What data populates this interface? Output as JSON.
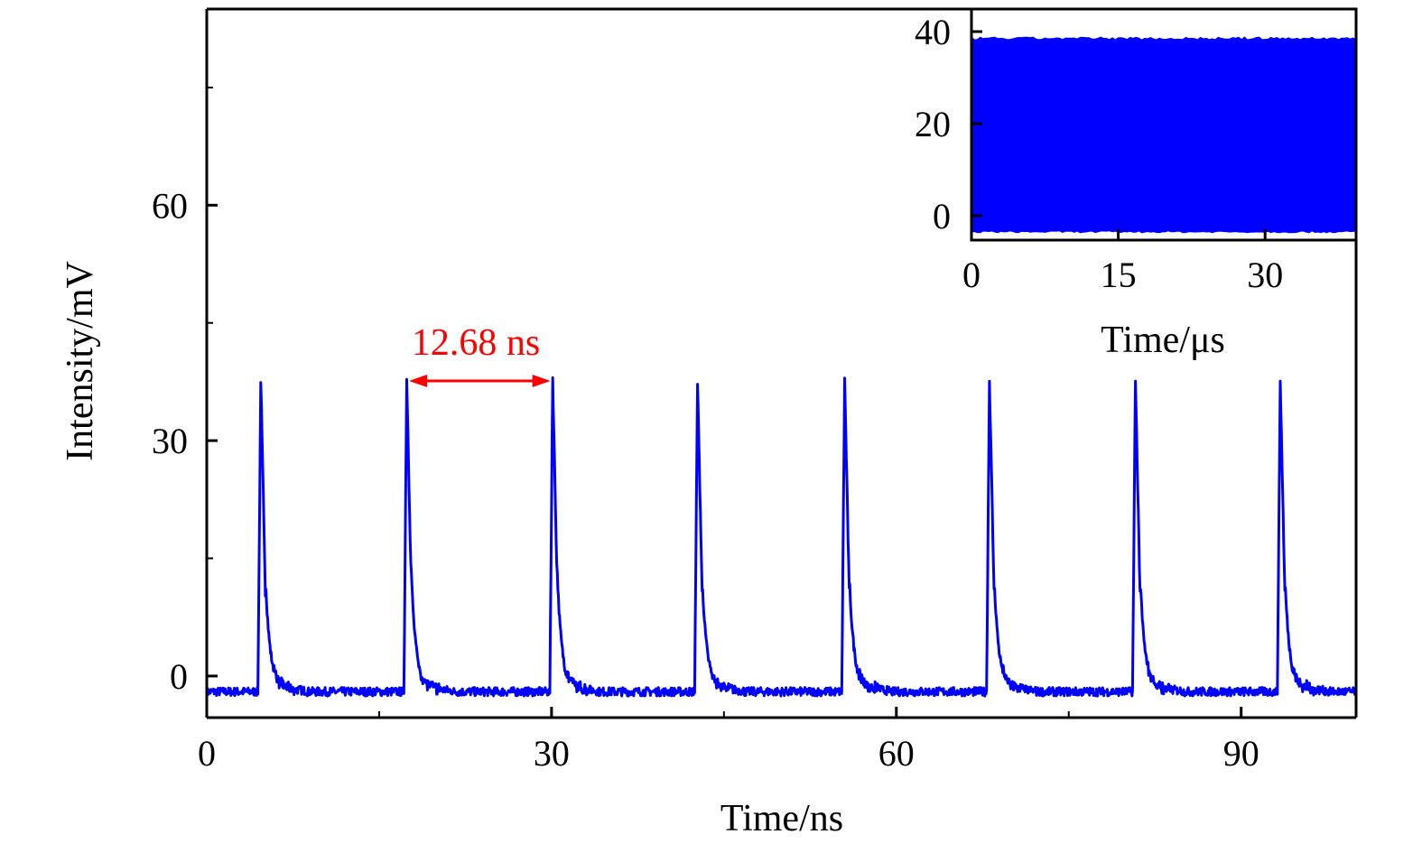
{
  "chart_data": [
    {
      "type": "line",
      "xlabel": "Time/ns",
      "ylabel": "Intensity/mV",
      "xlim": [
        0,
        100
      ],
      "ylim": [
        -5.3,
        85
      ],
      "xticks": [
        "0",
        "30",
        "60",
        "90"
      ],
      "yticks": [
        "0",
        "30",
        "60"
      ],
      "xtick_values": [
        0,
        30,
        60,
        90
      ],
      "ytick_values": [
        0,
        30,
        60
      ],
      "grid": false,
      "series": [
        {
          "color": "#0000ff",
          "baseline": -2,
          "peaks": [
            {
              "x": 4.7,
              "y": 37.8
            },
            {
              "x": 17.4,
              "y": 38.2
            },
            {
              "x": 30.1,
              "y": 38.0
            },
            {
              "x": 42.7,
              "y": 37.6
            },
            {
              "x": 55.5,
              "y": 37.8
            },
            {
              "x": 68.1,
              "y": 37.8
            },
            {
              "x": 80.8,
              "y": 37.8
            },
            {
              "x": 93.4,
              "y": 37.6
            }
          ]
        }
      ],
      "annotations": [
        {
          "text": "12.68 ns",
          "color": "#ff0000",
          "arrow_from": [
            17.6,
            37.6
          ],
          "arrow_to": [
            29.9,
            37.6
          ]
        }
      ]
    },
    {
      "type": "area",
      "inset": true,
      "xlabel": "Time/μs",
      "xlim": [
        0,
        39.3
      ],
      "ylim": [
        -5.3,
        44.9
      ],
      "xticks": [
        "0",
        "15",
        "30"
      ],
      "yticks": [
        "0",
        "20",
        "40"
      ],
      "xtick_values": [
        0,
        15,
        30
      ],
      "ytick_values": [
        0,
        20,
        40
      ],
      "series": [
        {
          "color": "#0000ff",
          "upper": 38.5,
          "lower": -3.5
        }
      ]
    }
  ]
}
